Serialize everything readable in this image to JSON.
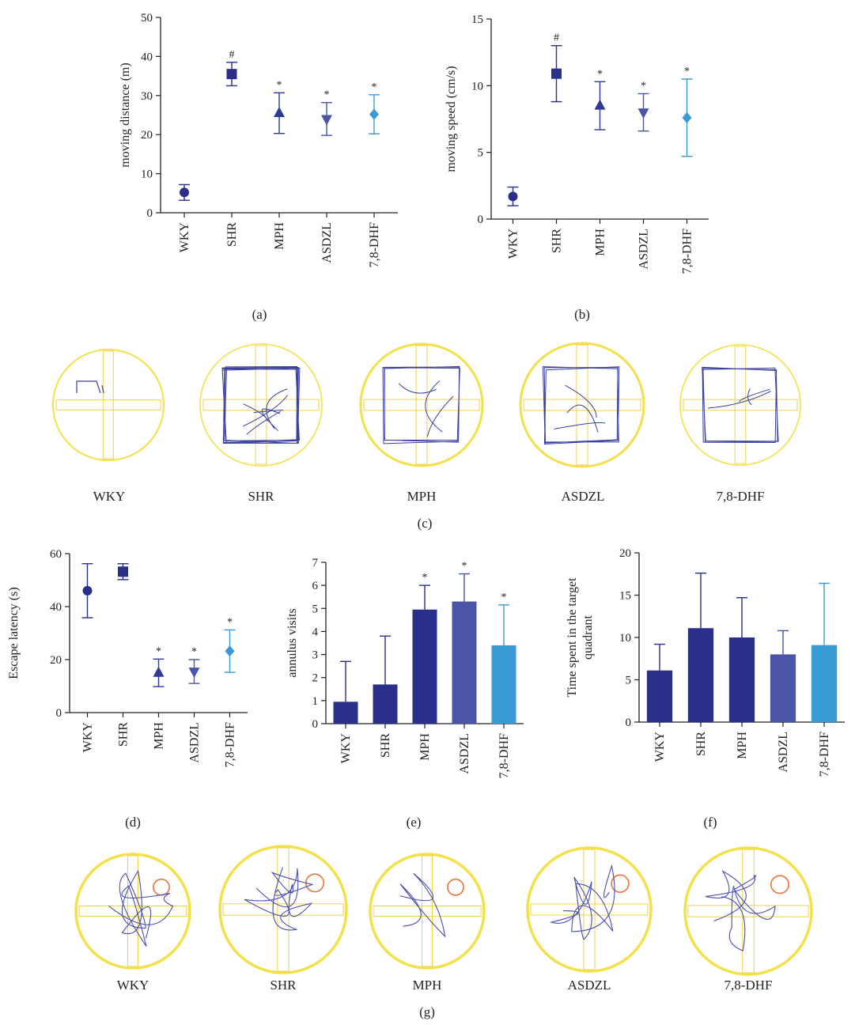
{
  "chart_data": [
    {
      "id": "a",
      "type": "scatter",
      "panel_label": "(a)",
      "ylabel": "moving distance (m)",
      "categories": [
        "WKY",
        "SHR",
        "MPH",
        "ASDZL",
        "7,8-DHF"
      ],
      "values": [
        5.2,
        35.5,
        25.5,
        24.0,
        25.2
      ],
      "errors": [
        2.0,
        3.0,
        5.2,
        4.2,
        5.0
      ],
      "markers": [
        "circle",
        "square",
        "triangle-up",
        "triangle-down",
        "diamond"
      ],
      "colors": [
        "#2a2f8a",
        "#2a2f8a",
        "#2e3a96",
        "#4a55a8",
        "#3a9ad6"
      ],
      "annotations": [
        "",
        "#",
        "*",
        "*",
        "*"
      ],
      "ylim": [
        0,
        50
      ],
      "yticks": [
        0,
        10,
        20,
        30,
        40,
        50
      ]
    },
    {
      "id": "b",
      "type": "scatter",
      "panel_label": "(b)",
      "ylabel": "moving speed (cm/s)",
      "categories": [
        "WKY",
        "SHR",
        "MPH",
        "ASDZL",
        "7,8-DHF"
      ],
      "values": [
        1.7,
        10.9,
        8.5,
        8.0,
        7.6
      ],
      "errors": [
        0.7,
        2.1,
        1.8,
        1.4,
        2.9
      ],
      "markers": [
        "circle",
        "square",
        "triangle-up",
        "triangle-down",
        "diamond"
      ],
      "colors": [
        "#2a2f8a",
        "#2a2f8a",
        "#2e3a96",
        "#4a55a8",
        "#3a9ad6"
      ],
      "annotations": [
        "",
        "#",
        "*",
        "*",
        "*"
      ],
      "ylim": [
        0,
        15
      ],
      "yticks": [
        0,
        5,
        10,
        15
      ]
    },
    {
      "id": "d",
      "type": "scatter",
      "panel_label": "(d)",
      "ylabel": "Escape latency (s)",
      "categories": [
        "WKY",
        "SHR",
        "MPH",
        "ASDZL",
        "7,8-DHF"
      ],
      "values": [
        46.0,
        53.2,
        15.0,
        15.5,
        23.2
      ],
      "errors": [
        10.2,
        3.0,
        5.2,
        4.5,
        8.0
      ],
      "markers": [
        "circle",
        "square",
        "triangle-up",
        "triangle-down",
        "diamond"
      ],
      "colors": [
        "#2a2f8a",
        "#2a2f8a",
        "#2e3a96",
        "#4a55a8",
        "#3a9ad6"
      ],
      "annotations": [
        "",
        "",
        "*",
        "*",
        "*"
      ],
      "ylim": [
        0,
        60
      ],
      "yticks": [
        0,
        20,
        40,
        60
      ]
    },
    {
      "id": "e",
      "type": "bar",
      "panel_label": "(e)",
      "ylabel": "annulus visits",
      "categories": [
        "WKY",
        "SHR",
        "MPH",
        "ASDZL",
        "7,8-DHF"
      ],
      "values": [
        0.95,
        1.7,
        4.95,
        5.3,
        3.4
      ],
      "errors": [
        1.75,
        2.1,
        1.05,
        1.2,
        1.75
      ],
      "colors": [
        "#2b2f8c",
        "#2b2f8c",
        "#2b2f8c",
        "#4a55a8",
        "#3a9ad6"
      ],
      "annotations": [
        "",
        "",
        "*",
        "*",
        "*"
      ],
      "ylim": [
        0,
        7
      ],
      "yticks": [
        0,
        1,
        2,
        3,
        4,
        5,
        6,
        7
      ]
    },
    {
      "id": "f",
      "type": "bar",
      "panel_label": "(f)",
      "ylabel_lines": [
        "Time spent in the target",
        "quadrant"
      ],
      "categories": [
        "WKY",
        "SHR",
        "MPH",
        "ASDZL",
        "7,8-DHF"
      ],
      "values": [
        6.1,
        11.1,
        10.0,
        8.0,
        9.1
      ],
      "errors": [
        3.1,
        6.5,
        4.7,
        2.8,
        7.3
      ],
      "colors": [
        "#2b2f8c",
        "#2b2f8c",
        "#2b2f8c",
        "#4a55a8",
        "#3a9ad6"
      ],
      "annotations": [
        "",
        "",
        "",
        "",
        ""
      ],
      "ylim": [
        0,
        20
      ],
      "yticks": [
        0,
        5,
        10,
        15,
        20
      ]
    }
  ],
  "tracks": {
    "c": {
      "panel_label": "(c)",
      "groups": [
        "WKY",
        "SHR",
        "MPH",
        "ASDZL",
        "7,8-DHF"
      ]
    },
    "g": {
      "panel_label": "(g)",
      "groups": [
        "WKY",
        "SHR",
        "MPH",
        "ASDZL",
        "7,8-DHF"
      ]
    }
  }
}
